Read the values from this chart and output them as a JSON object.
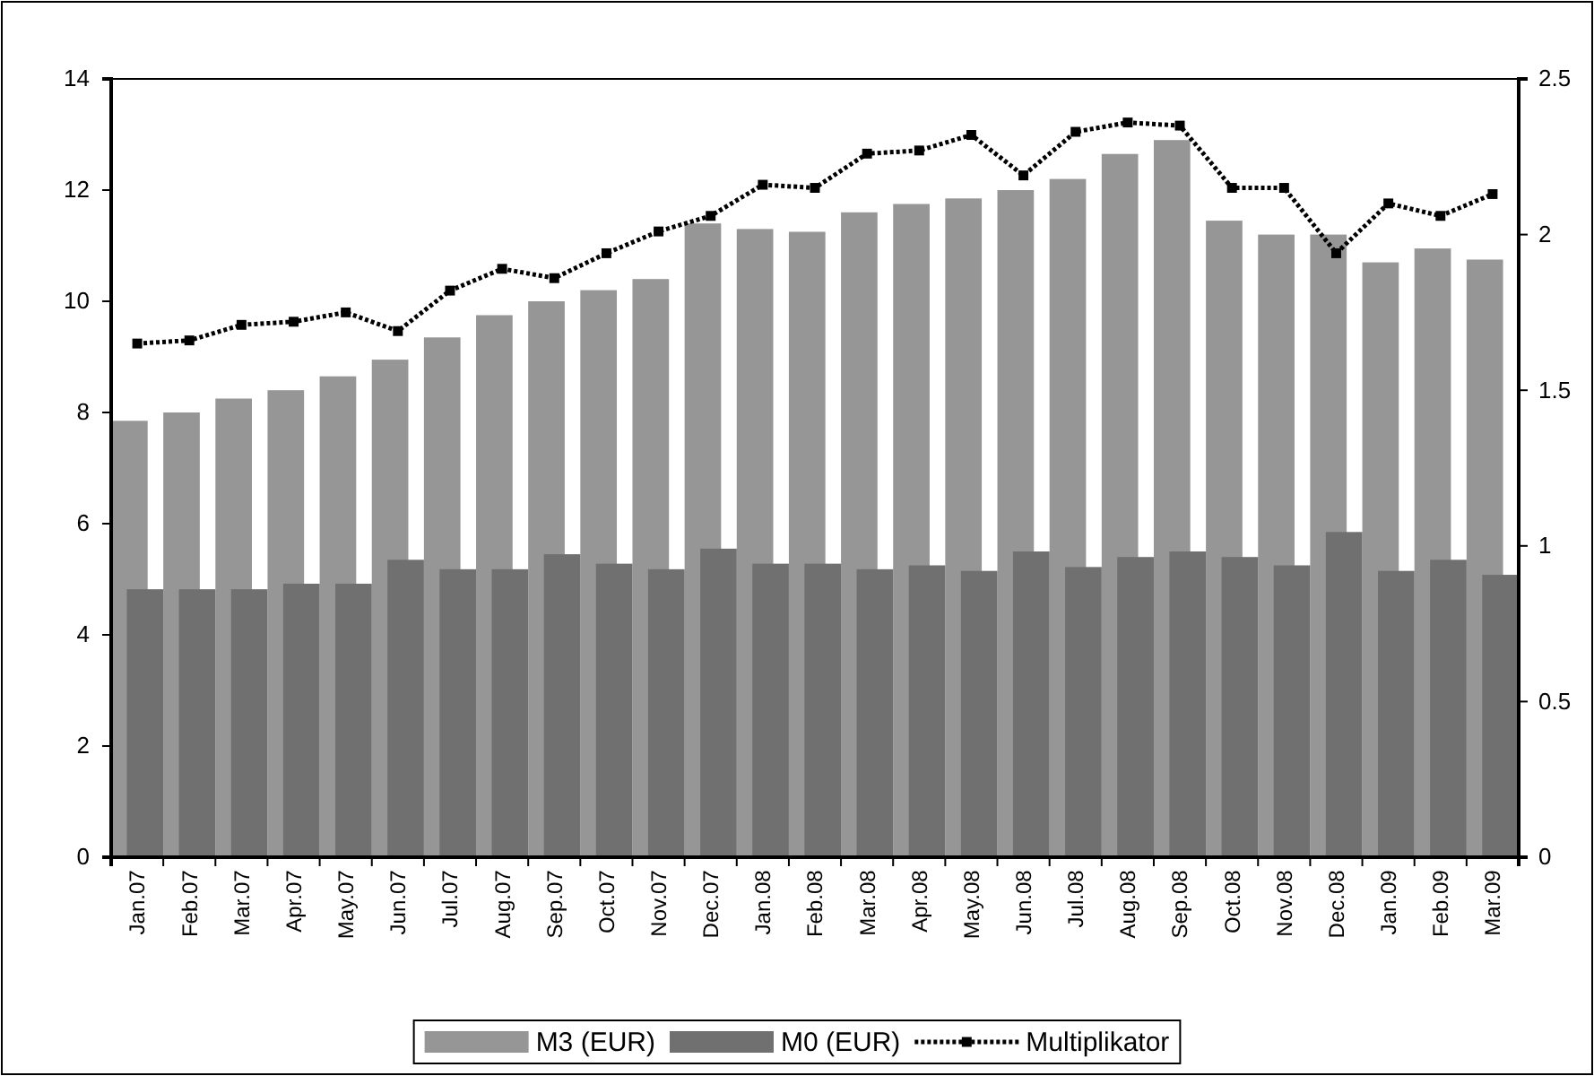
{
  "chart_data": {
    "type": "bar",
    "categories": [
      "Jan.07",
      "Feb.07",
      "Mar.07",
      "Apr.07",
      "May.07",
      "Jun.07",
      "Jul.07",
      "Aug.07",
      "Sep.07",
      "Oct.07",
      "Nov.07",
      "Dec.07",
      "Jan.08",
      "Feb.08",
      "Mar.08",
      "Apr.08",
      "May.08",
      "Jun.08",
      "Jul.08",
      "Aug.08",
      "Sep.08",
      "Oct.08",
      "Nov.08",
      "Dec.08",
      "Jan.09",
      "Feb.09",
      "Mar.09"
    ],
    "series": [
      {
        "name": "M3 (EUR)",
        "color": "#969696",
        "values": [
          7.85,
          8.0,
          8.25,
          8.4,
          8.65,
          8.95,
          9.35,
          9.75,
          10.0,
          10.2,
          10.4,
          11.4,
          11.3,
          11.25,
          11.6,
          11.75,
          11.85,
          12.0,
          12.2,
          12.65,
          12.9,
          11.45,
          11.2,
          11.2,
          10.7,
          10.95,
          10.75
        ]
      },
      {
        "name": "M0 (EUR)",
        "color": "#707070",
        "values": [
          4.82,
          4.82,
          4.82,
          4.92,
          4.92,
          5.35,
          5.18,
          5.18,
          5.45,
          5.28,
          5.18,
          5.55,
          5.28,
          5.28,
          5.18,
          5.25,
          5.15,
          5.5,
          5.22,
          5.4,
          5.5,
          5.4,
          5.25,
          5.85,
          5.15,
          5.35,
          5.08
        ]
      },
      {
        "name": "Multiplikator",
        "type": "line",
        "axis": "y2",
        "color": "#000000",
        "values": [
          1.65,
          1.66,
          1.71,
          1.72,
          1.75,
          1.69,
          1.82,
          1.89,
          1.86,
          1.94,
          2.01,
          2.06,
          2.16,
          2.15,
          2.26,
          2.27,
          2.32,
          2.19,
          2.33,
          2.36,
          2.35,
          2.15,
          2.15,
          1.94,
          2.1,
          2.06,
          2.13
        ]
      }
    ],
    "ylim": [
      0,
      14
    ],
    "yticks": [
      0,
      2,
      4,
      6,
      8,
      10,
      12,
      14
    ],
    "y2lim": [
      0,
      2.5
    ],
    "y2ticks": [
      0,
      0.5,
      1,
      1.5,
      2,
      2.5
    ],
    "grid": false,
    "legend": "bottom",
    "marker": "square",
    "line_style": "dotted"
  }
}
